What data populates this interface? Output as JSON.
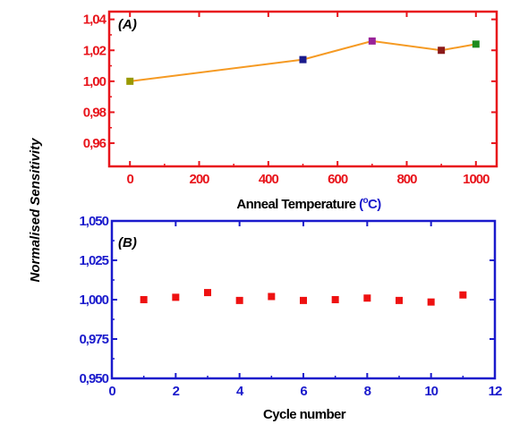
{
  "figure": {
    "shared_ylabel": "Normalised Sensitivity"
  },
  "chart_data": [
    {
      "id": "A",
      "type": "line",
      "panel_label": "(A)",
      "xlabel": "Anneal Temperature",
      "xlabel_unit_prefix": "(",
      "xlabel_unit_deg": "o",
      "xlabel_unit_suffix": "C)",
      "xlim": [
        -60,
        1060
      ],
      "ylim": [
        0.945,
        1.045
      ],
      "x_ticks": [
        0,
        200,
        400,
        600,
        800,
        1000
      ],
      "x_tick_labels": [
        "0",
        "200",
        "400",
        "600",
        "800",
        "1000"
      ],
      "y_ticks": [
        0.96,
        0.98,
        1.0,
        1.02,
        1.04
      ],
      "y_tick_labels": [
        "0,96",
        "0,98",
        "1,00",
        "1,02",
        "1,04"
      ],
      "axis_color": "#e8141b",
      "line_color": "#f59a23",
      "x": [
        0,
        500,
        700,
        900,
        1000
      ],
      "y": [
        1.0,
        1.014,
        1.026,
        1.02,
        1.024
      ],
      "point_colors": [
        "#999900",
        "#1a1a8c",
        "#992299",
        "#8b1a1a",
        "#1f8c1f"
      ],
      "grid": false
    },
    {
      "id": "B",
      "type": "scatter",
      "panel_label": "(B)",
      "xlabel": "Cycle number",
      "xlim": [
        0,
        12
      ],
      "ylim": [
        0.95,
        1.05
      ],
      "x_ticks": [
        0,
        2,
        4,
        6,
        8,
        10,
        12
      ],
      "x_tick_labels": [
        "0",
        "2",
        "4",
        "6",
        "8",
        "10",
        "12"
      ],
      "y_ticks": [
        0.95,
        0.975,
        1.0,
        1.025,
        1.05
      ],
      "y_tick_labels": [
        "0,950",
        "0,975",
        "1,000",
        "1,025",
        "1,050"
      ],
      "axis_color": "#1a1acc",
      "marker_color": "#ee1111",
      "x": [
        1,
        2,
        3,
        4,
        5,
        6,
        7,
        8,
        9,
        10,
        11
      ],
      "y": [
        1.0,
        1.0015,
        1.0045,
        0.9995,
        1.002,
        0.9995,
        1.0,
        1.001,
        0.9995,
        0.9985,
        1.003
      ],
      "grid": false
    }
  ]
}
